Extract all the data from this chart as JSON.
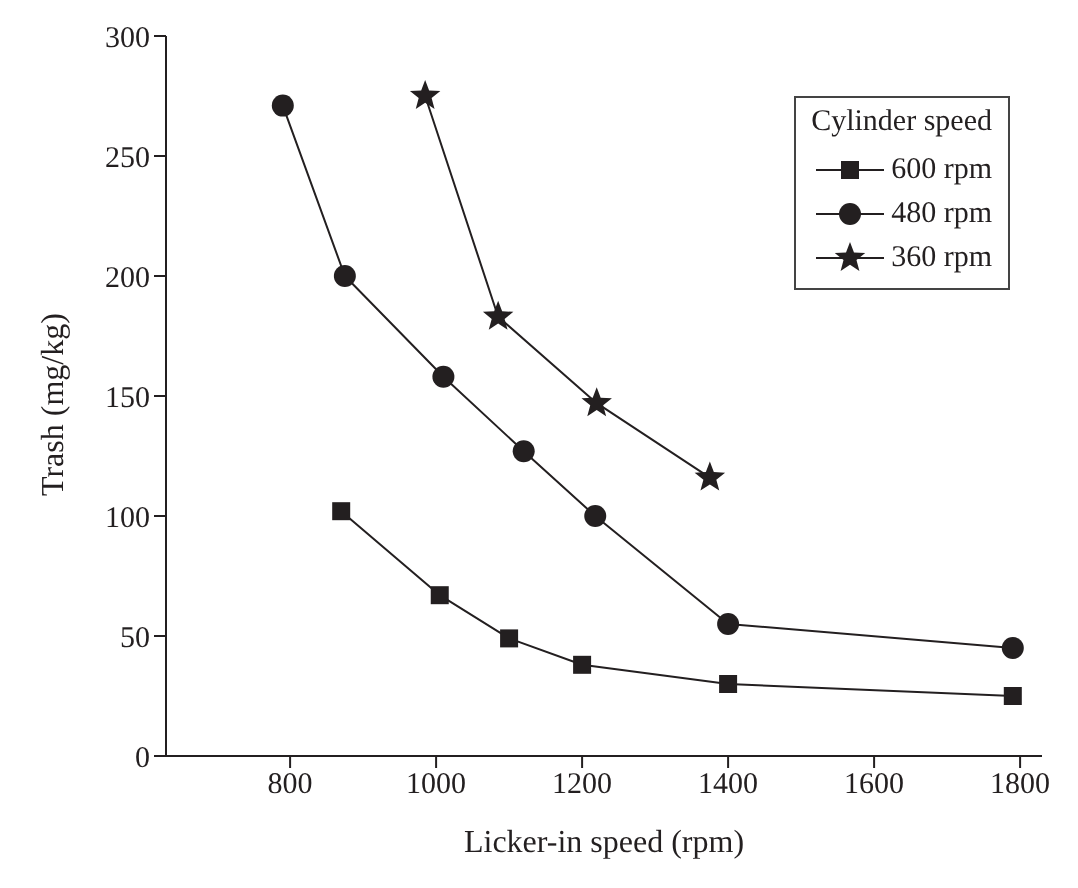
{
  "chart_data": {
    "type": "line",
    "xlabel": "Licker-in speed (rpm)",
    "ylabel": "Trash (mg/kg)",
    "legend_title": "Cylinder speed",
    "legend": "top right",
    "xlim": [
      630,
      1830
    ],
    "xticks": [
      800,
      1000,
      1200,
      1400,
      1600,
      1800
    ],
    "ylim": [
      0,
      300
    ],
    "yticks": [
      0,
      50,
      100,
      150,
      200,
      250,
      300
    ],
    "series": [
      {
        "name": "600 rpm",
        "color": "#231f20",
        "marker": "square",
        "x": [
          870,
          1005,
          1100,
          1200,
          1400,
          1790
        ],
        "values": [
          102,
          67,
          49,
          38,
          30,
          25
        ]
      },
      {
        "name": "480 rpm",
        "color": "#231f20",
        "marker": "circle",
        "x": [
          790,
          875,
          1010,
          1120,
          1218,
          1400,
          1790
        ],
        "values": [
          271,
          200,
          158,
          127,
          100,
          55,
          45
        ]
      },
      {
        "name": "360 rpm",
        "color": "#231f20",
        "marker": "star",
        "x": [
          985,
          1085,
          1220,
          1375
        ],
        "values": [
          275,
          183,
          147,
          116
        ]
      }
    ]
  }
}
